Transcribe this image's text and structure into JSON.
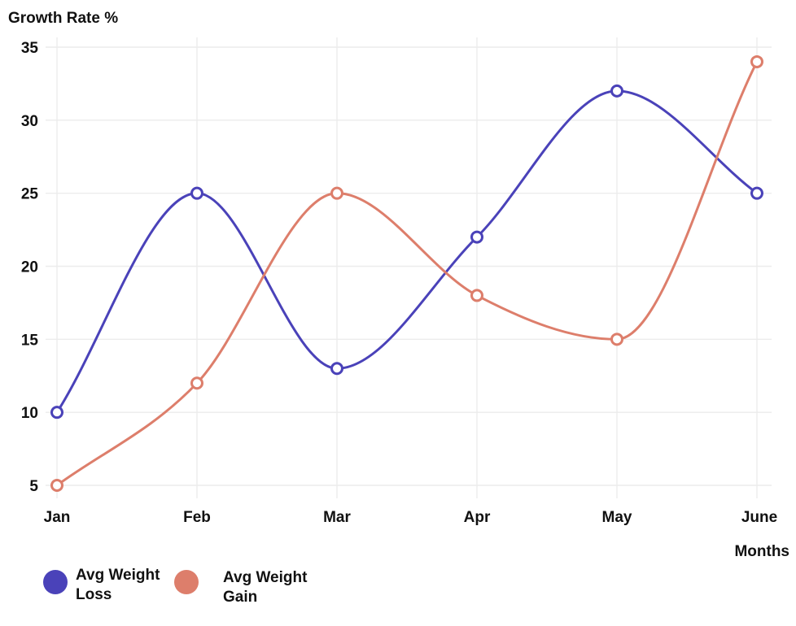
{
  "chart_data": {
    "type": "line",
    "ylabel": "Growth Rate %",
    "xlabel": "Months",
    "categories": [
      "Jan",
      "Feb",
      "Mar",
      "Apr",
      "May",
      "June"
    ],
    "ylim": [
      5,
      35
    ],
    "yticks": [
      5,
      10,
      15,
      20,
      25,
      30,
      35
    ],
    "grid": true,
    "legend_position": "bottom-left",
    "series": [
      {
        "name": "Avg Weight Loss",
        "color": "#4a42b9",
        "values": [
          10,
          25,
          13,
          22,
          32,
          25
        ]
      },
      {
        "name": "Avg Weight Gain",
        "color": "#dd7e6b",
        "values": [
          5,
          12,
          25,
          18,
          15,
          34
        ]
      }
    ]
  }
}
